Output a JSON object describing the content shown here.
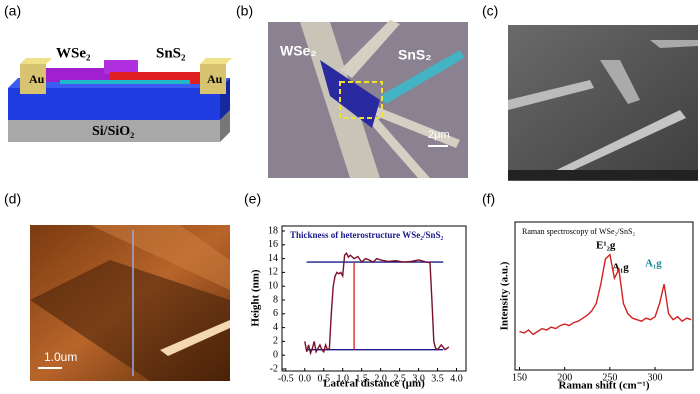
{
  "panels": {
    "labels": [
      "(a)",
      "(b)",
      "(c)",
      "(d)",
      "(e)",
      "(f)"
    ],
    "a": {
      "au_left": "Au",
      "au_right": "Au",
      "wse2": "WSe₂",
      "sns2": "SnS₂",
      "substrate": "Si/SiO₂"
    },
    "b": {
      "wse2": "WSe₂",
      "sns2": "SnS₂",
      "scale": "2μm"
    },
    "d": {
      "scale": "1.0um"
    }
  },
  "chart_data": [
    {
      "type": "line",
      "title": "Thickness of heterostructure WSe₂/SnS₂",
      "xlabel": "Lateral distance (μm)",
      "ylabel": "Height (nm)",
      "x": [
        0,
        0.05,
        0.1,
        0.15,
        0.2,
        0.25,
        0.3,
        0.35,
        0.4,
        0.45,
        0.5,
        0.55,
        0.6,
        0.65,
        0.7,
        0.75,
        0.8,
        0.85,
        0.9,
        0.95,
        1.0,
        1.05,
        1.1,
        1.15,
        1.2,
        1.3,
        1.4,
        1.5,
        1.6,
        1.7,
        1.8,
        1.9,
        2.0,
        2.2,
        2.4,
        2.6,
        2.8,
        3.0,
        3.2,
        3.3,
        3.35,
        3.4,
        3.45,
        3.5,
        3.6,
        3.7,
        3.8
      ],
      "series": [
        {
          "color": "#7a1028",
          "values": [
            2,
            0.5,
            1.5,
            0.3,
            1,
            2,
            0.5,
            1,
            1.5,
            0.8,
            0.5,
            1.5,
            0.8,
            1,
            6,
            10,
            11.5,
            12,
            11.8,
            12,
            11.5,
            14.5,
            14.8,
            14.2,
            14.5,
            14,
            14.3,
            13.5,
            14,
            13.8,
            13.5,
            14,
            13.8,
            13.6,
            13.7,
            13.5,
            13.6,
            13.8,
            13.5,
            13.4,
            8,
            2,
            1,
            0.8,
            1.5,
            0.8,
            1.2
          ]
        }
      ],
      "hlines": [
        13.5,
        0.8
      ],
      "hline_color": "#1a1a8c",
      "hline_xlim": [
        0.05,
        3.65
      ],
      "vline_x": 1.3,
      "vline_color": "#d42020",
      "xlim": [
        -0.6,
        4.25
      ],
      "ylim": [
        -2,
        18
      ],
      "xticks": [
        -0.5,
        {
          "value": 0,
          "label": "0.0"
        },
        0.5,
        {
          "value": 1,
          "label": "1.0"
        },
        1.5,
        {
          "value": 2,
          "label": "2.0"
        },
        2.5,
        {
          "value": 3,
          "label": "3.0"
        },
        3.5,
        {
          "value": 4,
          "label": "4.0"
        }
      ],
      "yticks": [
        -2,
        0,
        2,
        4,
        6,
        8,
        10,
        12,
        14,
        16,
        18
      ]
    },
    {
      "type": "line",
      "title": "Raman spectroscopy of WSe₂/SnS₂",
      "xlabel": "Raman shift (cm⁻¹)",
      "ylabel": "Intensity (a.u.)",
      "x": [
        150,
        155,
        160,
        165,
        170,
        175,
        180,
        185,
        190,
        195,
        200,
        205,
        210,
        215,
        220,
        225,
        230,
        235,
        240,
        245,
        250,
        255,
        260,
        265,
        270,
        275,
        280,
        285,
        290,
        295,
        300,
        305,
        310,
        315,
        320,
        325,
        330,
        335,
        340
      ],
      "series": [
        {
          "color": "#d42020",
          "values": [
            0.26,
            0.25,
            0.27,
            0.24,
            0.26,
            0.28,
            0.27,
            0.29,
            0.28,
            0.3,
            0.31,
            0.3,
            0.32,
            0.33,
            0.35,
            0.37,
            0.4,
            0.45,
            0.58,
            0.75,
            0.78,
            0.62,
            0.68,
            0.45,
            0.38,
            0.35,
            0.34,
            0.33,
            0.35,
            0.34,
            0.36,
            0.45,
            0.58,
            0.38,
            0.34,
            0.36,
            0.33,
            0.35,
            0.34
          ]
        }
      ],
      "annotations": [
        "E¹₂g",
        "A₁g",
        "A₁g"
      ],
      "xlim": [
        145,
        342
      ],
      "ylim": [
        0,
        1
      ],
      "xticks": [
        150,
        200,
        250,
        300
      ]
    }
  ]
}
